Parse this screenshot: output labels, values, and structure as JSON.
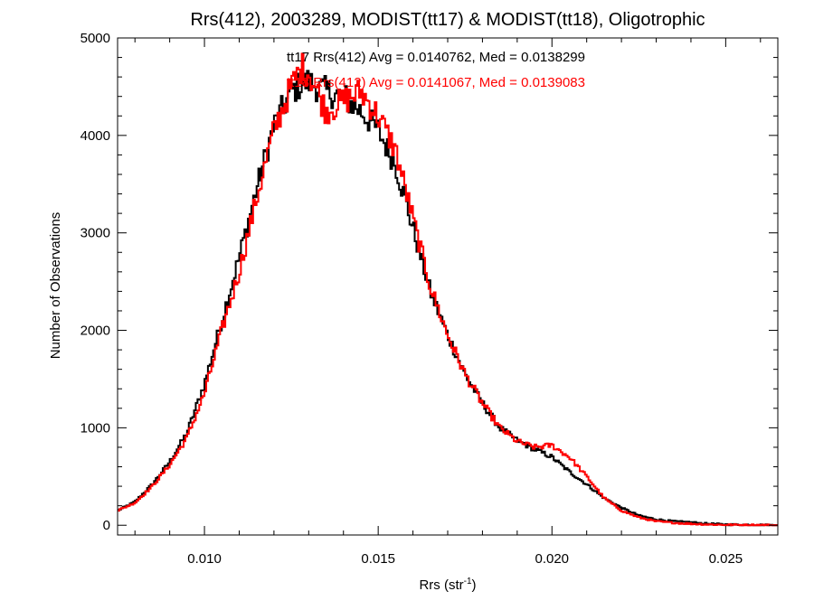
{
  "chart_data": {
    "type": "line",
    "title": "Rrs(412), 2003289, MODIST(tt17) & MODIST(tt18), Oligotrophic",
    "xlabel_base": "Rrs (str",
    "xlabel_sup": "-1",
    "xlabel_tail": ")",
    "ylabel": "Number of Observations",
    "xlim": [
      0.0075,
      0.0265
    ],
    "ylim": [
      -100,
      5000
    ],
    "x_ticks": [
      0.01,
      0.015,
      0.02,
      0.025
    ],
    "x_tick_labels": [
      "0.010",
      "0.015",
      "0.020",
      "0.025"
    ],
    "y_ticks": [
      0,
      1000,
      2000,
      3000,
      4000,
      5000
    ],
    "y_tick_labels": [
      "0",
      "1000",
      "2000",
      "3000",
      "4000",
      "5000"
    ],
    "grid": false,
    "annotations": [
      {
        "text": "tt17 Rrs(412) Avg = 0.0140762, Med = 0.0138299",
        "color": "#000000"
      },
      {
        "text": "tt18 Rrs(412) Avg = 0.0141067, Med = 0.0139083",
        "color": "#ff0000"
      }
    ],
    "series": [
      {
        "color": "#000000",
        "x": [
          0.0075,
          0.008,
          0.0085,
          0.009,
          0.0095,
          0.01,
          0.0105,
          0.011,
          0.0115,
          0.012,
          0.0125,
          0.0128,
          0.013,
          0.0135,
          0.014,
          0.0145,
          0.015,
          0.0155,
          0.016,
          0.0165,
          0.017,
          0.0175,
          0.018,
          0.0185,
          0.019,
          0.0195,
          0.02,
          0.0205,
          0.021,
          0.0215,
          0.022,
          0.0225,
          0.023,
          0.0235,
          0.024,
          0.0245,
          0.025,
          0.026,
          0.0265
        ],
        "y": [
          150,
          240,
          420,
          650,
          950,
          1450,
          2100,
          2750,
          3450,
          4100,
          4450,
          4530,
          4550,
          4450,
          4400,
          4250,
          4050,
          3700,
          3050,
          2400,
          1950,
          1550,
          1250,
          1000,
          870,
          780,
          700,
          550,
          420,
          280,
          180,
          100,
          60,
          40,
          30,
          15,
          8,
          3,
          0
        ]
      },
      {
        "color": "#ff0000",
        "x": [
          0.0075,
          0.008,
          0.0085,
          0.009,
          0.0095,
          0.01,
          0.0105,
          0.011,
          0.0115,
          0.012,
          0.0125,
          0.0128,
          0.013,
          0.0135,
          0.014,
          0.0145,
          0.015,
          0.0155,
          0.016,
          0.0165,
          0.017,
          0.0175,
          0.018,
          0.0185,
          0.019,
          0.0195,
          0.02,
          0.0205,
          0.021,
          0.0215,
          0.022,
          0.0225,
          0.023,
          0.0235,
          0.024,
          0.0245,
          0.025,
          0.026,
          0.0265
        ],
        "y": [
          150,
          230,
          400,
          620,
          900,
          1350,
          2000,
          2600,
          3350,
          4050,
          4500,
          4700,
          4650,
          4250,
          4350,
          4450,
          4200,
          3850,
          3150,
          2450,
          1950,
          1550,
          1250,
          1000,
          860,
          800,
          820,
          700,
          500,
          280,
          150,
          80,
          40,
          25,
          15,
          8,
          4,
          2,
          0
        ]
      }
    ]
  }
}
